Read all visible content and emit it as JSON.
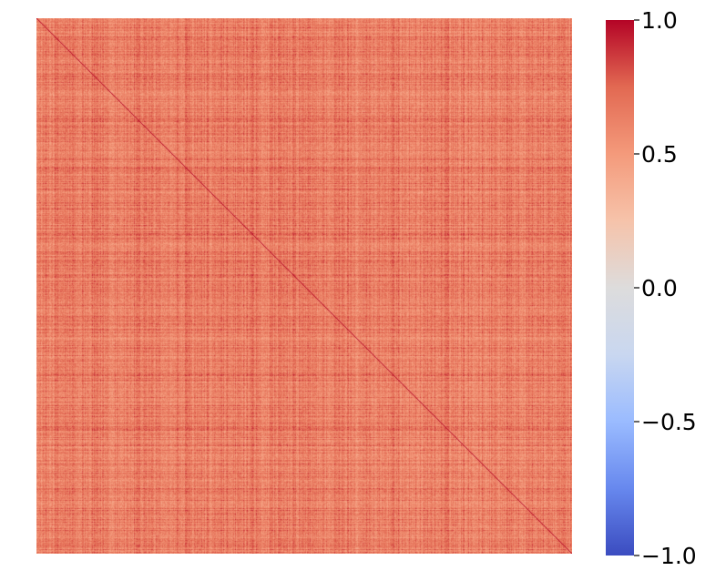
{
  "chart_data": {
    "type": "heatmap",
    "title": "",
    "xlabel": "",
    "ylabel": "",
    "matrix_size": 600,
    "diagonal_value": 1.0,
    "typical_value_range": [
      0.45,
      0.85
    ],
    "colorbar": {
      "colormap": "coolwarm",
      "vmin": -1.0,
      "vmax": 1.0,
      "ticks": [
        1.0,
        0.5,
        0.0,
        -0.5,
        -1.0
      ],
      "tick_labels": [
        "1.0",
        "0.5",
        "0.0",
        "−0.5",
        "−1.0"
      ],
      "color_stops": [
        "#3b4cc0",
        "#6788ee",
        "#9abbff",
        "#c9d7f0",
        "#dddcdc",
        "#f6c3aa",
        "#f49a7b",
        "#e26952",
        "#b40426"
      ]
    },
    "axis_tick_labels_visible": false,
    "grid": false
  }
}
